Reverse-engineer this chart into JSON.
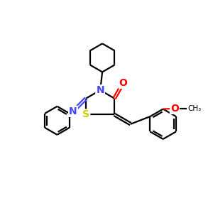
{
  "background": "#ffffff",
  "atom_colors": {
    "N": "#4444ff",
    "S": "#cccc00",
    "O": "#ff0000",
    "C": "#000000"
  },
  "bond_color": "#000000",
  "linewidth": 1.6,
  "figsize": [
    3.0,
    3.0
  ],
  "dpi": 100,
  "xlim": [
    0,
    10
  ],
  "ylim": [
    0,
    10
  ]
}
